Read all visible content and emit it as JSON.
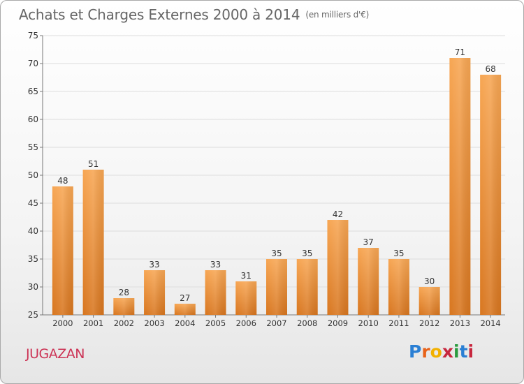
{
  "header": {
    "title": "Achats et Charges Externes 2000 à 2014",
    "unit": "(en milliers d'€)"
  },
  "footer": {
    "commune": "JUGAZAN",
    "brand": "Proxiti",
    "brand_colors": [
      "#2a7fd4",
      "#e8631a",
      "#f2b100",
      "#c7263e",
      "#2a9b3f",
      "#2a7fd4",
      "#c7263e"
    ]
  },
  "colors": {
    "bar_light": "#f7a653",
    "bar_dark": "#d8761f",
    "axis": "#777777",
    "grid": "#dddddd"
  },
  "chart_data": {
    "type": "bar",
    "categories": [
      "2000",
      "2001",
      "2002",
      "2003",
      "2004",
      "2005",
      "2006",
      "2007",
      "2008",
      "2009",
      "2010",
      "2011",
      "2012",
      "2013",
      "2014"
    ],
    "values": [
      48,
      51,
      28,
      33,
      27,
      33,
      31,
      35,
      35,
      42,
      37,
      35,
      30,
      71,
      68
    ],
    "ylim": [
      25,
      75
    ],
    "yticks": [
      25,
      30,
      35,
      40,
      45,
      50,
      55,
      60,
      65,
      70,
      75
    ],
    "grid": true,
    "data_labels": true
  }
}
